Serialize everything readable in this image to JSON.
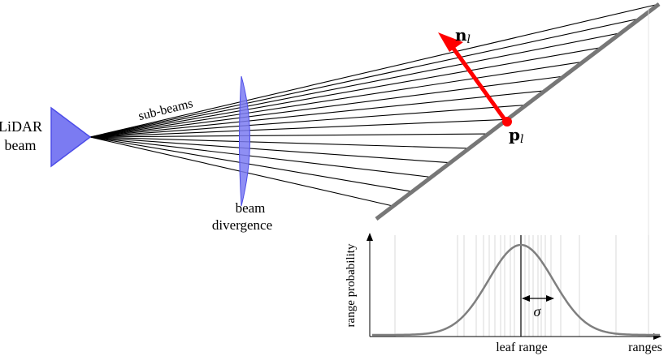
{
  "labels": {
    "lidar_line1": "LiDAR",
    "lidar_line2": "beam",
    "sub_beams": "sub-beams",
    "divergence_line1": "beam",
    "divergence_line2": "divergence",
    "normal_main": "n",
    "normal_sub": "l",
    "point_main": "p",
    "point_sub": "l"
  },
  "chart_data": {
    "type": "line",
    "xlabel": "ranges",
    "ylabel": "range probability",
    "x_tick_labels": [
      "leaf range"
    ],
    "annotations": [
      "σ"
    ],
    "grid": false,
    "series": [
      {
        "shape": "gaussian",
        "center": "leaf range",
        "spread": "σ"
      }
    ]
  },
  "colors": {
    "beam_fill": "#7b7bf2",
    "beam_stroke": "#4d4de8",
    "surface": "#777777",
    "normal_arrow": "#ff0000",
    "curve": "#7f7f7f",
    "ray": "#000000"
  }
}
